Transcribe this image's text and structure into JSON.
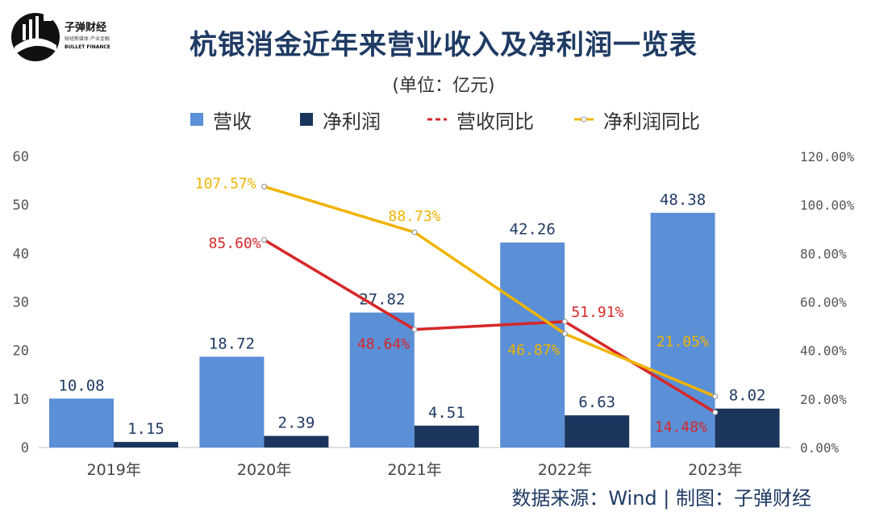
{
  "title": "杭银消金近年来营业收入及净利润一览表",
  "subtitle": "(单位：亿元)",
  "source": "数据来源：Wind  |  制图：子弹财经",
  "logo": {
    "brand_cn": "子弹财经",
    "brand_en": "BULLET FINANCE",
    "tagline": "财经新媒体 产业金融",
    "colors": {
      "circle": "#111111",
      "stripes": "#ffffff"
    }
  },
  "colors": {
    "revenue": "#5b8fd6",
    "profit": "#1b365d",
    "revenue_yoy": "#d62728",
    "profit_yoy": "#f0b400",
    "axis_text": "#555555",
    "title": "#1f3b64"
  },
  "chart_data": {
    "type": "bar",
    "categories": [
      "2019年",
      "2020年",
      "2021年",
      "2022年",
      "2023年"
    ],
    "series": [
      {
        "name": "营收",
        "type": "bar",
        "axis": "left",
        "values": [
          10.08,
          18.72,
          27.82,
          42.26,
          48.38
        ],
        "labels": [
          "10.08",
          "18.72",
          "27.82",
          "42.26",
          "48.38"
        ]
      },
      {
        "name": "净利润",
        "type": "bar",
        "axis": "left",
        "values": [
          1.15,
          2.39,
          4.51,
          6.63,
          8.02
        ],
        "labels": [
          "1.15",
          "2.39",
          "4.51",
          "6.63",
          "8.02"
        ]
      },
      {
        "name": "营收同比",
        "type": "line",
        "axis": "right",
        "style": "dashed-marker",
        "values": [
          null,
          85.6,
          48.64,
          51.91,
          14.48
        ],
        "labels": [
          null,
          "85.60%",
          "48.64%",
          "51.91%",
          "14.48%"
        ]
      },
      {
        "name": "净利润同比",
        "type": "line",
        "axis": "right",
        "style": "circle-marker",
        "values": [
          null,
          107.57,
          88.73,
          46.87,
          21.05
        ],
        "labels": [
          null,
          "107.57%",
          "88.73%",
          "46.87%",
          "21.05%"
        ]
      }
    ],
    "y_left": {
      "min": 0,
      "max": 60,
      "ticks": [
        "0",
        "10",
        "20",
        "30",
        "40",
        "50",
        "60"
      ]
    },
    "y_right": {
      "min": 0,
      "max": 120,
      "ticks": [
        "0.00%",
        "20.00%",
        "40.00%",
        "60.00%",
        "80.00%",
        "100.00%",
        "120.00%"
      ]
    },
    "grid": false,
    "legend": "top"
  }
}
